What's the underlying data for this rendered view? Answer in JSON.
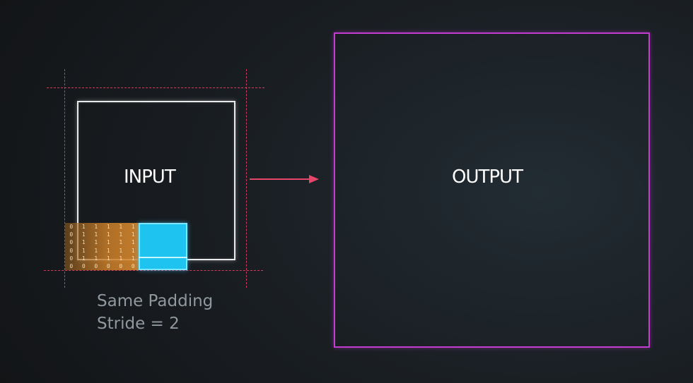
{
  "diagram": {
    "input_label": "INPUT",
    "output_label": "OUTPUT",
    "caption_line1": "Same Padding",
    "caption_line2": "Stride = 2",
    "matrix_rows": [
      [
        "0",
        "1",
        "1",
        "1",
        "1",
        "1"
      ],
      [
        "0",
        "1",
        "1",
        "1",
        "1",
        "1"
      ],
      [
        "0",
        "1",
        "1",
        "1",
        "1",
        "1"
      ],
      [
        "0",
        "1",
        "1",
        "1",
        "1",
        "1"
      ],
      [
        "0",
        "1",
        "1",
        "1",
        "1",
        "1"
      ],
      [
        "0",
        "0",
        "0",
        "0",
        "0",
        "0"
      ]
    ],
    "colors": {
      "background": "#141618",
      "input_border": "#e9e9e9",
      "output_border": "#c23ccf",
      "padding_guides": "#d23a5c",
      "arrow": "#e8456a",
      "kernel": "#1ec4ef",
      "receptive_region": "#d08a35",
      "caption": "#8f979f"
    }
  }
}
